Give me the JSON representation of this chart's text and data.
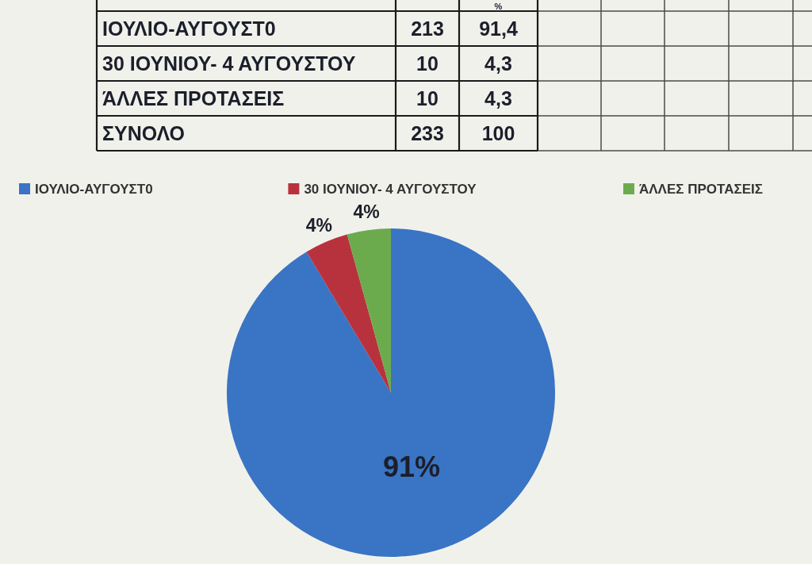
{
  "chart_data": [
    {
      "type": "other",
      "categories": [
        "ΙΟΥΛΙΟ-ΑΥΓΟΥΣΤ0",
        "30 ΙΟΥΝΙΟΥ- 4 ΑΥΓΟΥΣΤΟΥ",
        "ΆΛΛΕΣ ΠΡΟΤΑΣΕΙΣ",
        "ΣΥΝΟΛΟ"
      ],
      "series": [
        {
          "values": [
            213,
            10,
            10,
            233
          ]
        },
        {
          "name": "%",
          "values": [
            91.4,
            4.3,
            4.3,
            100
          ],
          "value_labels": [
            "91,4",
            "4,3",
            "4,3",
            "100"
          ]
        }
      ],
      "data_labels": true
    },
    {
      "type": "pie",
      "categories": [
        "ΙΟΥΛΙΟ-ΑΥΓΟΥΣΤ0",
        "30 ΙΟΥΝΙΟΥ- 4 ΑΥΓΟΥΣΤΟΥ",
        "ΆΛΛΕΣ ΠΡΟΤΑΣΕΙΣ"
      ],
      "values": [
        91.4,
        4.3,
        4.3
      ],
      "colors": [
        "#3a74c4",
        "#b8323e",
        "#6cab4d"
      ],
      "value_labels": [
        "91%",
        "4%",
        "4%"
      ],
      "legend": "top"
    }
  ]
}
